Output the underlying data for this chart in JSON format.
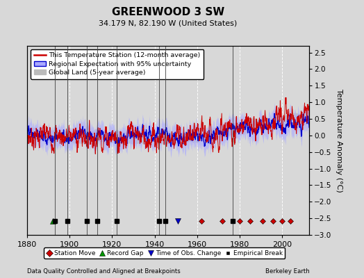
{
  "title": "GREENWOOD 3 SW",
  "subtitle": "34.179 N, 82.190 W (United States)",
  "ylabel": "Temperature Anomaly (°C)",
  "xlabel_left": "Data Quality Controlled and Aligned at Breakpoints",
  "xlabel_right": "Berkeley Earth",
  "xlim": [
    1880,
    2013
  ],
  "ylim": [
    -3,
    2.7
  ],
  "yticks": [
    -3,
    -2.5,
    -2,
    -1.5,
    -1,
    -0.5,
    0,
    0.5,
    1,
    1.5,
    2,
    2.5
  ],
  "xticks": [
    1880,
    1900,
    1920,
    1940,
    1960,
    1980,
    2000
  ],
  "background_color": "#d8d8d8",
  "plot_background": "#d8d8d8",
  "grid_color": "#ffffff",
  "station_moves": [
    1962,
    1972,
    1980,
    1985,
    1991,
    1996,
    2000,
    2004
  ],
  "record_gaps": [
    1892
  ],
  "obs_changes": [
    1951
  ],
  "empirical_breaks": [
    1893,
    1899,
    1908,
    1913,
    1922,
    1942,
    1945,
    1977
  ],
  "vertical_lines": [
    1893,
    1899,
    1908,
    1913,
    1922,
    1942,
    1945,
    1977
  ],
  "red_color": "#cc0000",
  "blue_color": "#0000cc",
  "blue_fill_color": "#aaaaff",
  "gray_color": "#bbbbbb",
  "marker_y": -2.58,
  "legend_labels": [
    "This Temperature Station (12-month average)",
    "Regional Expectation with 95% uncertainty",
    "Global Land (5-year average)"
  ],
  "bottom_legend_labels": [
    "Station Move",
    "Record Gap",
    "Time of Obs. Change",
    "Empirical Break"
  ]
}
